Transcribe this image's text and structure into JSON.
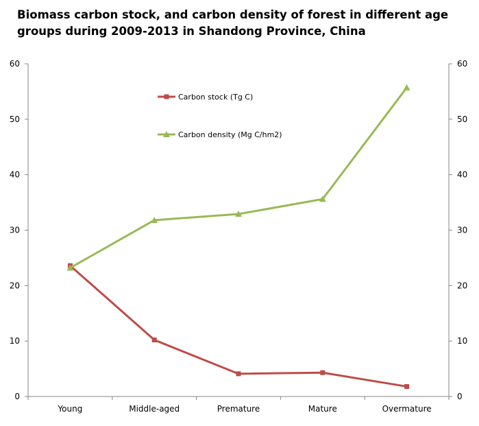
{
  "chart_data": {
    "type": "line",
    "title": "Biomass carbon stock, and carbon density of forest in different age groups during 2009-2013 in Shandong Province, China",
    "xlabel": "",
    "ylabel": "",
    "categories": [
      "Young",
      "Middle-aged",
      "Premature",
      "Mature",
      "Overmature"
    ],
    "ylim": [
      0,
      60
    ],
    "y2lim": [
      0,
      60
    ],
    "yticks": [
      "0",
      "10",
      "20",
      "30",
      "40",
      "50",
      "60"
    ],
    "grid": false,
    "legend_position": "top-center",
    "series": [
      {
        "name": "Carbon stock (Tg C)",
        "values": [
          23.6,
          10.2,
          4.1,
          4.3,
          1.8
        ],
        "color": "#be4b48",
        "marker": "square"
      },
      {
        "name": "Carbon density (Mg C/hm2)",
        "values": [
          23.2,
          31.8,
          32.9,
          35.6,
          55.7
        ],
        "color": "#98b954",
        "marker": "triangle"
      }
    ]
  }
}
